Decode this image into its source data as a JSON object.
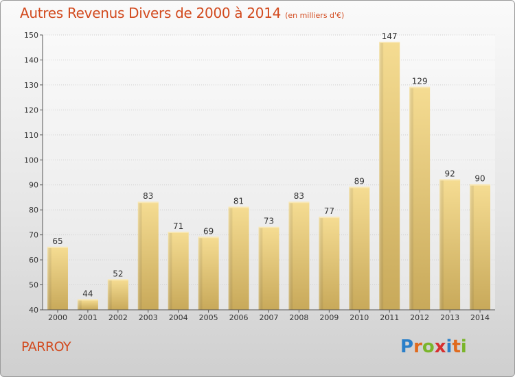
{
  "title": "Autres Revenus Divers de 2000 à 2014",
  "unit_note": "(en milliers d'€)",
  "town": "PARROY",
  "logo": {
    "letters": [
      "P",
      "r",
      "o",
      "x",
      "i",
      "t",
      "i"
    ],
    "colors": [
      "#2a7fc9",
      "#e06a1d",
      "#7ab52a",
      "#d62f2f",
      "#2a7fc9",
      "#e06a1d",
      "#7ab52a"
    ]
  },
  "colors": {
    "bar": "#e6c46c",
    "title": "#d24a1e"
  },
  "chart_data": {
    "type": "bar",
    "categories": [
      "2000",
      "2001",
      "2002",
      "2003",
      "2004",
      "2005",
      "2006",
      "2007",
      "2008",
      "2009",
      "2010",
      "2011",
      "2012",
      "2013",
      "2014"
    ],
    "values": [
      65,
      44,
      52,
      83,
      71,
      69,
      81,
      73,
      83,
      77,
      89,
      147,
      129,
      92,
      90
    ],
    "ylim": [
      40,
      150
    ],
    "yticks": [
      40,
      50,
      60,
      70,
      80,
      90,
      100,
      110,
      120,
      130,
      140,
      150
    ],
    "grid": true,
    "legend": false
  }
}
